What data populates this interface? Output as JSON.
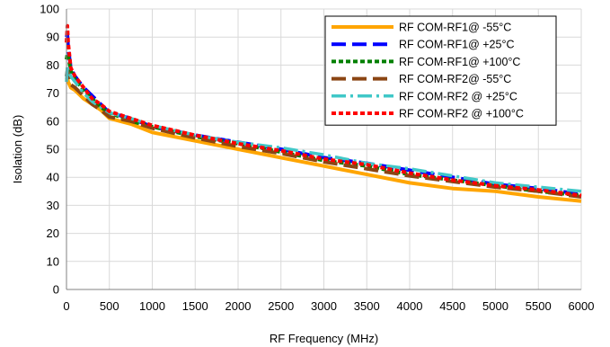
{
  "chart_data": {
    "type": "line",
    "title": "",
    "xlabel": "RF Frequency (MHz)",
    "ylabel": "Isolation (dB)",
    "xlim": [
      0,
      6000
    ],
    "ylim": [
      0,
      100
    ],
    "xticks": [
      0,
      500,
      1000,
      1500,
      2000,
      2500,
      3000,
      3500,
      4000,
      4500,
      5000,
      5500,
      6000
    ],
    "yticks": [
      0,
      10,
      20,
      30,
      40,
      50,
      60,
      70,
      80,
      90,
      100
    ],
    "grid": true,
    "legend_position": "top-right",
    "series": [
      {
        "name": "RF COM-RF1@ -55°C",
        "color": "#ffa500",
        "dash": "solid",
        "x": [
          0,
          10,
          20,
          50,
          100,
          200,
          300,
          400,
          500,
          750,
          1000,
          1500,
          2000,
          2500,
          3000,
          3500,
          4000,
          4500,
          5000,
          5500,
          6000
        ],
        "y": [
          75,
          76,
          74,
          72,
          71,
          68,
          66,
          64,
          61,
          59,
          56,
          53,
          50,
          47,
          44,
          41,
          38,
          36,
          35,
          33,
          31.5
        ]
      },
      {
        "name": "RF COM-RF1@ +25°C",
        "color": "#0000ff",
        "dash": "long",
        "x": [
          0,
          10,
          20,
          50,
          100,
          200,
          300,
          400,
          500,
          750,
          1000,
          1500,
          2000,
          2500,
          3000,
          3500,
          4000,
          4500,
          5000,
          5500,
          6000
        ],
        "y": [
          90,
          91,
          86,
          79,
          76,
          72,
          69,
          66,
          63,
          61,
          58,
          55,
          52.5,
          50,
          47,
          45,
          42.5,
          40,
          37.5,
          36,
          34
        ]
      },
      {
        "name": "RF COM-RF1@ +100°C",
        "color": "#008000",
        "dash": "short",
        "x": [
          0,
          10,
          20,
          50,
          100,
          200,
          300,
          400,
          500,
          750,
          1000,
          1500,
          2000,
          2500,
          3000,
          3500,
          4000,
          4500,
          5000,
          5500,
          6000
        ],
        "y": [
          82,
          84,
          83,
          78,
          75,
          71,
          68,
          65,
          63,
          60,
          58,
          54.5,
          52,
          49,
          46,
          44,
          41,
          39,
          37,
          35,
          33.5
        ]
      },
      {
        "name": "RF COM-RF2@ -55°C",
        "color": "#8b4513",
        "dash": "long",
        "x": [
          0,
          10,
          20,
          50,
          100,
          200,
          300,
          400,
          500,
          750,
          1000,
          1500,
          2000,
          2500,
          3000,
          3500,
          4000,
          4500,
          5000,
          5500,
          6000
        ],
        "y": [
          76,
          78,
          77,
          73,
          72,
          69,
          66,
          64,
          61.5,
          60,
          57.5,
          54,
          51,
          48.5,
          45.5,
          43,
          40.5,
          38.5,
          36.5,
          35,
          33
        ]
      },
      {
        "name": "RF COM-RF2 @ +25°C",
        "color": "#40c8c8",
        "dash": "dashdot",
        "x": [
          0,
          10,
          20,
          50,
          100,
          200,
          300,
          400,
          500,
          750,
          1000,
          1500,
          2000,
          2500,
          3000,
          3500,
          4000,
          4500,
          5000,
          5500,
          6000
        ],
        "y": [
          74,
          80,
          78,
          76,
          74,
          70,
          67,
          65,
          63,
          61,
          58.5,
          55,
          52.5,
          50.5,
          48,
          45,
          43,
          40.5,
          38,
          36.5,
          35
        ]
      },
      {
        "name": "RF COM-RF2 @ +100°C",
        "color": "#ff0000",
        "dash": "short",
        "x": [
          0,
          10,
          20,
          50,
          100,
          200,
          300,
          400,
          500,
          750,
          1000,
          1500,
          2000,
          2500,
          3000,
          3500,
          4000,
          4500,
          5000,
          5500,
          6000
        ],
        "y": [
          88,
          94,
          88,
          79,
          76,
          72,
          68,
          66,
          63.5,
          61,
          58.5,
          55,
          52,
          49.5,
          46.5,
          44.5,
          41.5,
          39,
          37,
          35.5,
          33.5
        ]
      }
    ]
  }
}
